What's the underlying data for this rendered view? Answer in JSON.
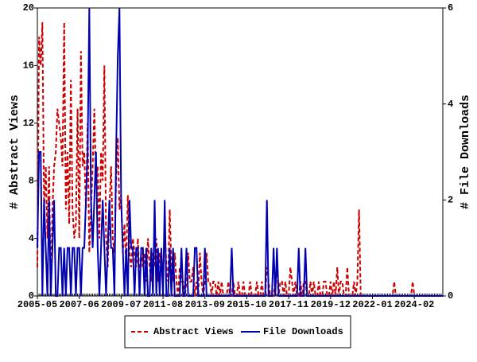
{
  "chart_data": {
    "type": "line",
    "y_label": "# Abstract Views",
    "y2_label": "# File Downloads",
    "categories": [
      "2005-05",
      null,
      null,
      null,
      null,
      null,
      null,
      null,
      null,
      null,
      null,
      null,
      null,
      null,
      null,
      null,
      null,
      null,
      null,
      null,
      null,
      null,
      null,
      null,
      null,
      "2007-06",
      null,
      null,
      null,
      null,
      null,
      null,
      null,
      null,
      null,
      null,
      null,
      null,
      null,
      null,
      null,
      null,
      null,
      null,
      null,
      null,
      null,
      null,
      null,
      null,
      "2009-07",
      null,
      null,
      null,
      null,
      null,
      null,
      null,
      null,
      null,
      null,
      null,
      null,
      null,
      null,
      null,
      null,
      null,
      null,
      null,
      null,
      null,
      null,
      null,
      null,
      "2011-08",
      null,
      null,
      null,
      null,
      null,
      null,
      null,
      null,
      null,
      null,
      null,
      null,
      null,
      null,
      null,
      null,
      null,
      null,
      null,
      null,
      null,
      null,
      null,
      null,
      "2013-09",
      null,
      null,
      null,
      null,
      null,
      null,
      null,
      null,
      null,
      null,
      null,
      null,
      null,
      null,
      null,
      null,
      null,
      null,
      null,
      null,
      null,
      null,
      null,
      null,
      "2015-10",
      null,
      null,
      null,
      null,
      null,
      null,
      null,
      null,
      null,
      null,
      null,
      null,
      null,
      null,
      null,
      null,
      null,
      null,
      null,
      null,
      null,
      null,
      null,
      null,
      "2017-11",
      null,
      null,
      null,
      null,
      null,
      null,
      null,
      null,
      null,
      null,
      null,
      null,
      null,
      null,
      null,
      null,
      null,
      null,
      null,
      null,
      null,
      null,
      null,
      null,
      "2019-12",
      null,
      null,
      null,
      null,
      null,
      null,
      null,
      null,
      null,
      null,
      null,
      null,
      null,
      null,
      null,
      null,
      null,
      null,
      null,
      null,
      null,
      null,
      null,
      null,
      "2022-01",
      null,
      null,
      null,
      null,
      null,
      null,
      null,
      null,
      null,
      null,
      null,
      null,
      null,
      null,
      null,
      null,
      null,
      null,
      null,
      null,
      null,
      null,
      null,
      null,
      "2024-02",
      null,
      null,
      null,
      null,
      null,
      null,
      null,
      null,
      null,
      null,
      null,
      null,
      null,
      null,
      null,
      null,
      null
    ],
    "series": [
      {
        "name": "Abstract Views",
        "color": "#cc0000",
        "dash": true,
        "axis": "y",
        "values": [
          2,
          18,
          16,
          19,
          6,
          9,
          4,
          9,
          0,
          6,
          9,
          10,
          13,
          12,
          11,
          9,
          19,
          6,
          10,
          5,
          15,
          6,
          4,
          5,
          13,
          4,
          17,
          9,
          10,
          6,
          12,
          3,
          6,
          9,
          13,
          8,
          9,
          4,
          10,
          8,
          16,
          4,
          2,
          6,
          9,
          4,
          3,
          8,
          11,
          6,
          7,
          3,
          5,
          2,
          7,
          3,
          2,
          4,
          3,
          2,
          4,
          1,
          3,
          2,
          3,
          1,
          4,
          2,
          1,
          3,
          2,
          4,
          1,
          3,
          2,
          1,
          5,
          2,
          1,
          6,
          2,
          1,
          3,
          1,
          0,
          2,
          1,
          1,
          0,
          1,
          3,
          1,
          1,
          2,
          0,
          1,
          0,
          3,
          1,
          0,
          1,
          3,
          1,
          1,
          0,
          1,
          1,
          0,
          1,
          0,
          1,
          0,
          0,
          0,
          1,
          0,
          0,
          1,
          0,
          0,
          1,
          0,
          0,
          1,
          0,
          0,
          0,
          1,
          0,
          0,
          0,
          1,
          0,
          0,
          1,
          0,
          0,
          2,
          1,
          0,
          0,
          0,
          1,
          2,
          0,
          1,
          1,
          0,
          1,
          0,
          0,
          2,
          1,
          0,
          1,
          0,
          0,
          1,
          0,
          1,
          1,
          0,
          0,
          1,
          0,
          1,
          0,
          0,
          1,
          0,
          0,
          1,
          1,
          0,
          0,
          1,
          0,
          1,
          0,
          2,
          0,
          1,
          1,
          0,
          0,
          2,
          0,
          0,
          0,
          1,
          0,
          1,
          6,
          0,
          0,
          0,
          0,
          0,
          0,
          0,
          0,
          0,
          0,
          0,
          0,
          0,
          0,
          0,
          0,
          0,
          0,
          0,
          0,
          1,
          0,
          0,
          0,
          0,
          0,
          0,
          0,
          0,
          0,
          0,
          1,
          0,
          0,
          0,
          0,
          0,
          0,
          0,
          0,
          0,
          0,
          0,
          0,
          0,
          0,
          0,
          0,
          0,
          0
        ]
      },
      {
        "name": "File Downloads",
        "color": "#0000b0",
        "dash": false,
        "axis": "y2",
        "values": [
          1,
          3,
          3,
          0,
          2,
          1,
          0,
          2,
          0,
          1,
          2,
          0,
          0,
          1,
          1,
          0,
          1,
          0,
          1,
          1,
          0,
          1,
          1,
          0,
          1,
          1,
          0,
          1,
          1,
          2,
          3,
          6,
          2,
          1,
          2,
          3,
          1,
          0,
          1,
          2,
          1,
          0,
          1,
          2,
          1,
          1,
          0,
          3,
          5,
          6,
          2,
          1,
          0,
          1,
          0,
          2,
          1,
          1,
          0,
          1,
          1,
          0,
          1,
          1,
          0,
          1,
          0,
          0,
          1,
          0,
          2,
          0,
          1,
          0,
          1,
          0,
          2,
          0,
          0,
          1,
          0,
          1,
          0,
          0,
          0,
          0,
          1,
          0,
          0,
          1,
          0,
          0,
          0,
          0,
          1,
          1,
          0,
          0,
          0,
          0,
          1,
          0,
          0,
          0,
          0,
          0,
          0,
          0,
          0,
          0,
          0,
          0,
          0,
          0,
          0,
          0,
          1,
          0,
          0,
          0,
          0,
          0,
          0,
          0,
          0,
          0,
          0,
          0,
          0,
          0,
          0,
          0,
          0,
          0,
          0,
          0,
          0,
          2,
          0,
          0,
          0,
          1,
          0,
          1,
          0,
          0,
          0,
          0,
          0,
          0,
          0,
          0,
          0,
          0,
          0,
          0,
          1,
          0,
          0,
          0,
          1,
          0,
          0,
          0,
          0,
          0,
          0,
          0,
          0,
          0,
          0,
          0,
          0,
          0,
          0,
          0,
          0,
          0,
          0,
          0,
          0,
          0,
          0,
          0,
          0,
          0,
          0,
          0,
          0,
          0,
          0,
          0,
          0,
          0,
          0,
          0,
          0,
          0,
          0,
          0,
          0,
          0,
          0,
          0,
          0,
          0,
          0,
          0,
          0,
          0,
          0,
          0,
          0,
          0,
          0,
          0,
          0,
          0,
          0,
          0,
          0,
          0,
          0,
          0,
          0,
          0,
          0,
          0,
          0,
          0,
          0,
          0,
          0,
          0,
          0,
          0,
          0,
          0,
          0,
          0,
          0,
          0,
          0
        ]
      }
    ],
    "ylim": [
      0,
      20
    ],
    "yticks": [
      0,
      4,
      8,
      12,
      16,
      20
    ],
    "y2lim": [
      0,
      6
    ],
    "y2ticks": [
      0,
      2,
      4,
      6
    ],
    "grid": false,
    "legend": "bottom"
  }
}
